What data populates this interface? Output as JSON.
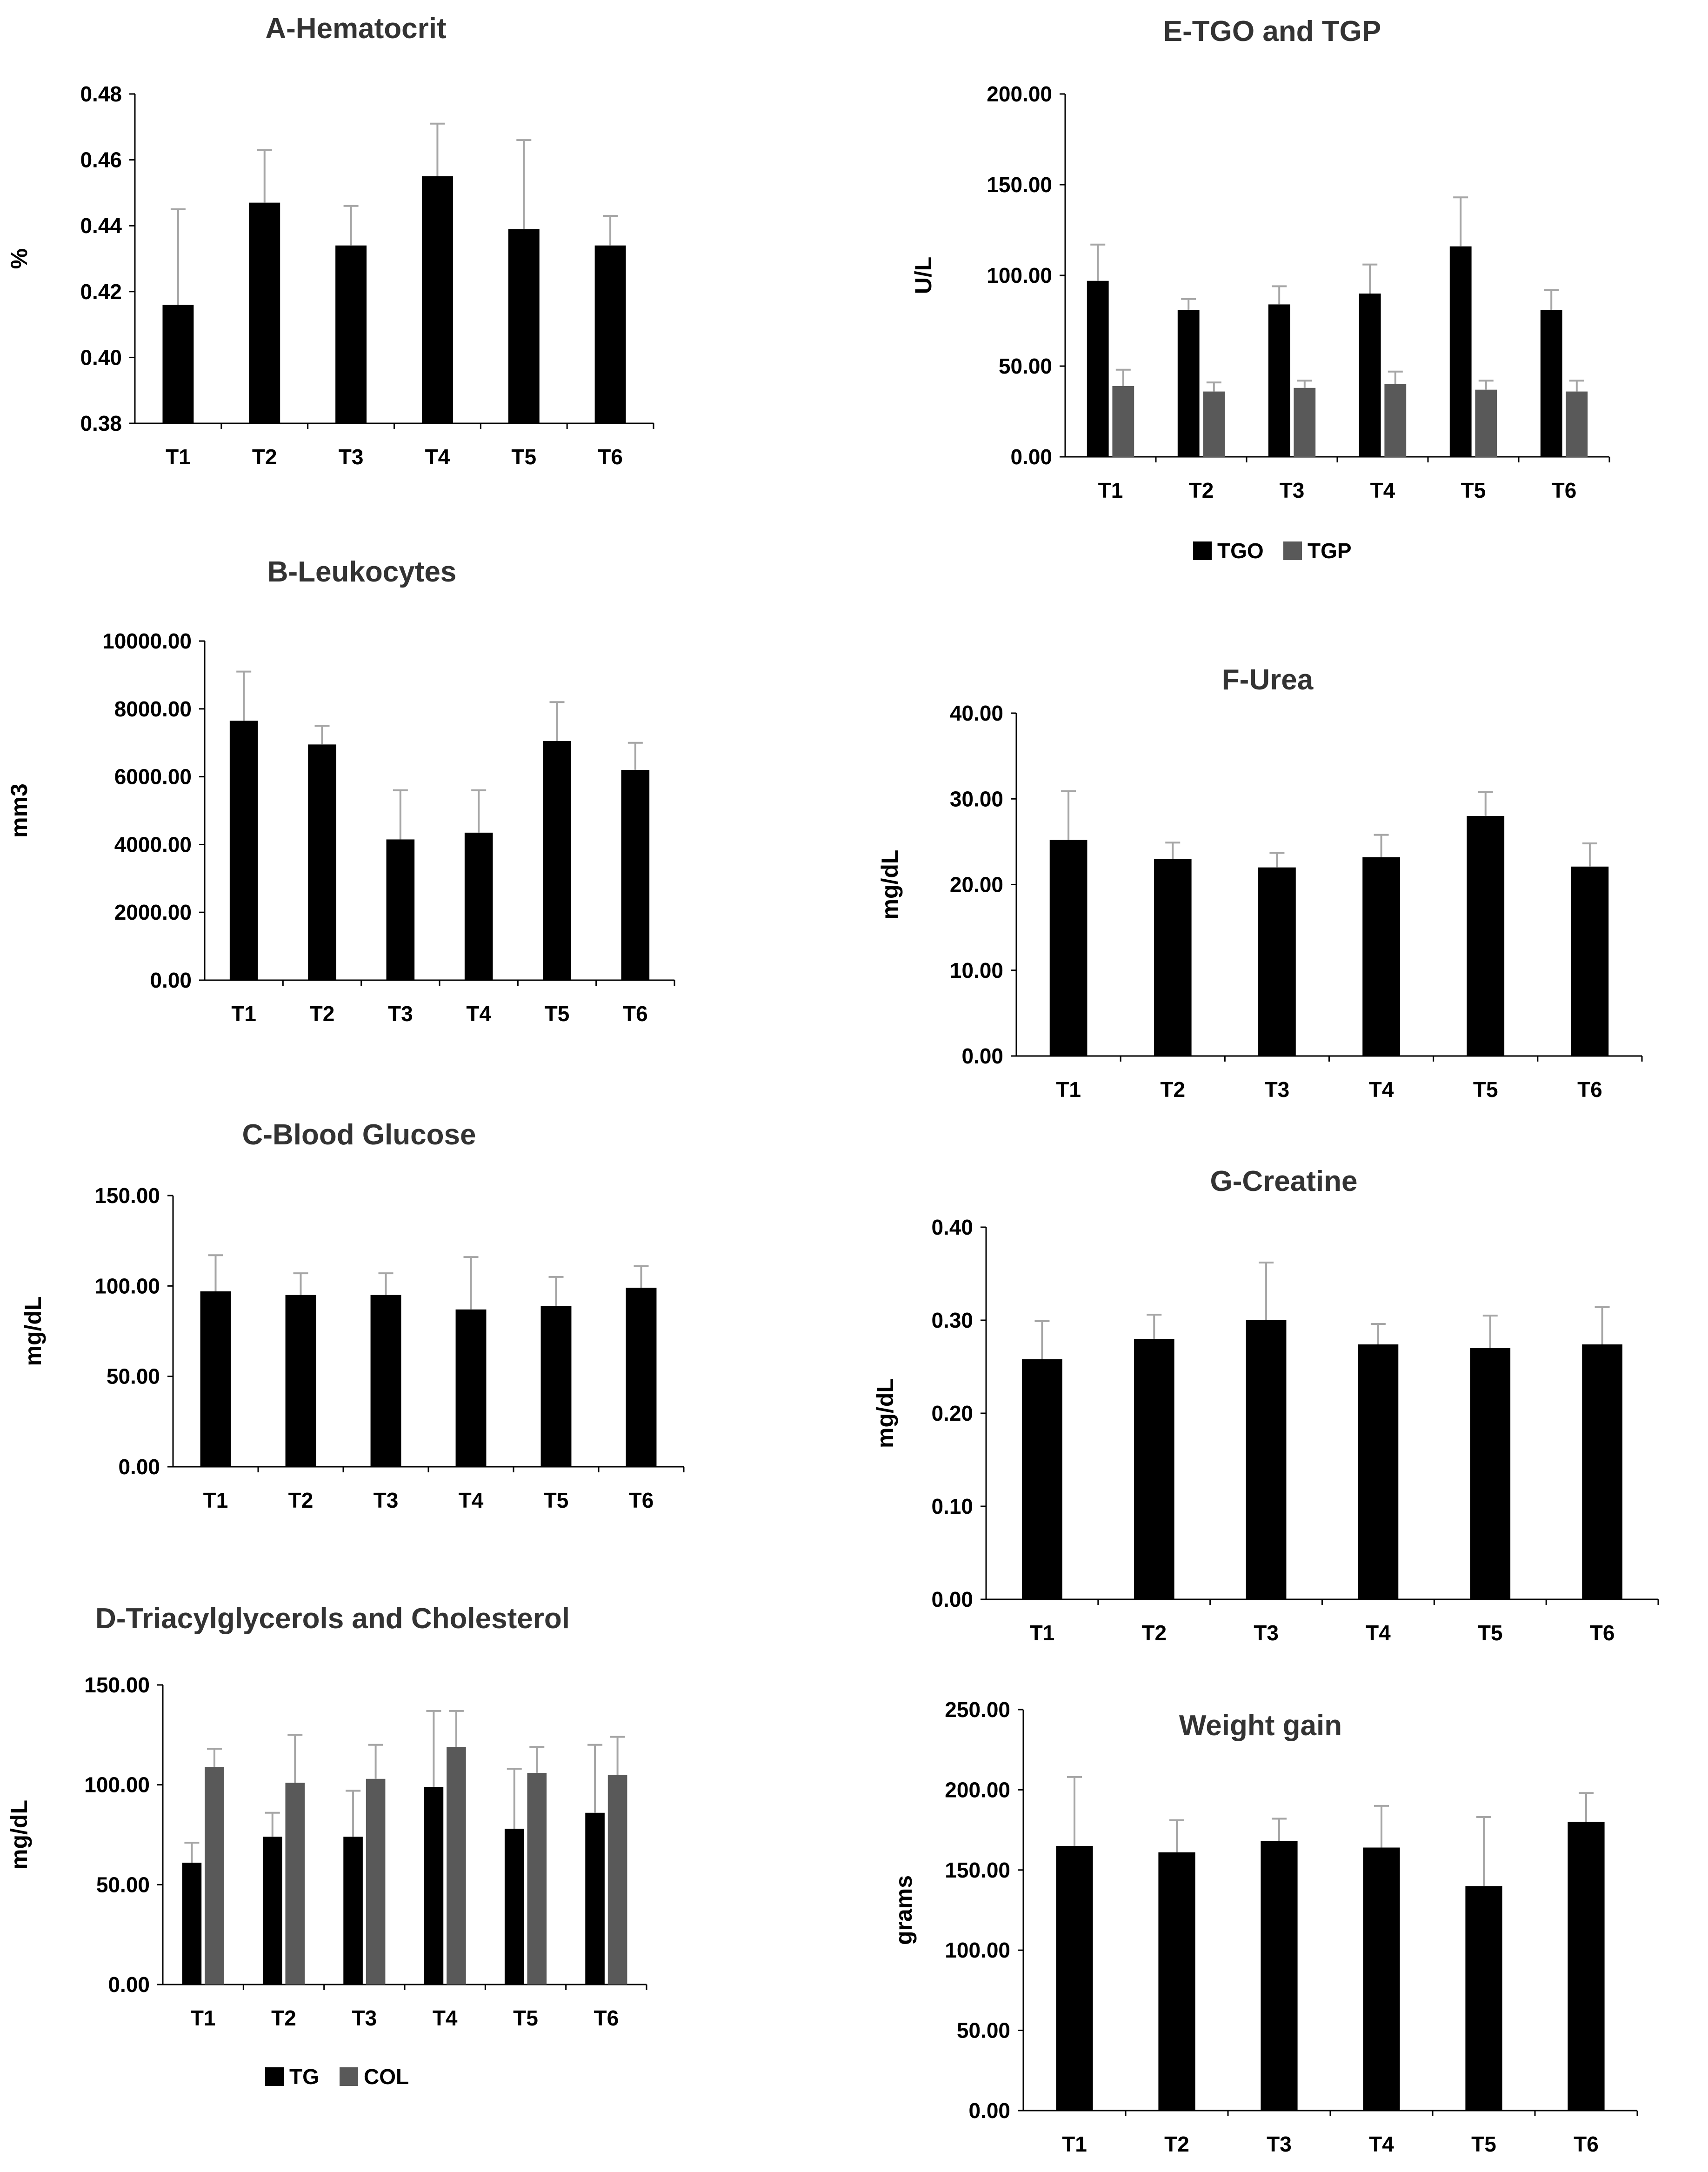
{
  "colors": {
    "primary_bar": "#000000",
    "secondary_bar": "#595959",
    "error_bar": "#a6a6a6",
    "text": "#000000",
    "title": "#333333"
  },
  "chart_data": [
    {
      "id": "A",
      "type": "bar",
      "title": "A-Hematocrit",
      "ylabel": "%",
      "categories": [
        "T1",
        "T2",
        "T3",
        "T4",
        "T5",
        "T6"
      ],
      "ylim": [
        0.38,
        0.48
      ],
      "ytick_step": 0.02,
      "ytick_decimals": 2,
      "series": [
        {
          "name": "Hematocrit",
          "color_key": "primary_bar",
          "values": [
            0.416,
            0.447,
            0.434,
            0.455,
            0.439,
            0.434
          ],
          "errors": [
            0.029,
            0.016,
            0.012,
            0.016,
            0.027,
            0.009
          ]
        }
      ],
      "legend": null
    },
    {
      "id": "B",
      "type": "bar",
      "title": "B-Leukocytes",
      "ylabel": "mm3",
      "categories": [
        "T1",
        "T2",
        "T3",
        "T4",
        "T5",
        "T6"
      ],
      "ylim": [
        0,
        10000
      ],
      "ytick_step": 2000,
      "ytick_decimals": 2,
      "series": [
        {
          "name": "Leukocytes",
          "color_key": "primary_bar",
          "values": [
            7650,
            6950,
            4150,
            4350,
            7050,
            6200
          ],
          "errors": [
            1450,
            550,
            1450,
            1250,
            1150,
            800
          ]
        }
      ],
      "legend": null
    },
    {
      "id": "C",
      "type": "bar",
      "title": "C-Blood Glucose",
      "ylabel": "mg/dL",
      "categories": [
        "T1",
        "T2",
        "T3",
        "T4",
        "T5",
        "T6"
      ],
      "ylim": [
        0,
        150
      ],
      "ytick_step": 50,
      "ytick_decimals": 2,
      "series": [
        {
          "name": "Glucose",
          "color_key": "primary_bar",
          "values": [
            97,
            95,
            95,
            87,
            89,
            99
          ],
          "errors": [
            20,
            12,
            12,
            29,
            16,
            12
          ]
        }
      ],
      "legend": null
    },
    {
      "id": "D",
      "type": "bar",
      "title": "D-Triacylglycerols and Cholesterol",
      "ylabel": "mg/dL",
      "categories": [
        "T1",
        "T2",
        "T3",
        "T4",
        "T5",
        "T6"
      ],
      "ylim": [
        0,
        150
      ],
      "ytick_step": 50,
      "ytick_decimals": 2,
      "series": [
        {
          "name": "TG",
          "color_key": "primary_bar",
          "values": [
            61,
            74,
            74,
            99,
            78,
            86
          ],
          "errors": [
            10,
            12,
            23,
            38,
            30,
            34
          ]
        },
        {
          "name": "COL",
          "color_key": "secondary_bar",
          "values": [
            109,
            101,
            103,
            119,
            106,
            105
          ],
          "errors": [
            9,
            24,
            17,
            18,
            13,
            19
          ]
        }
      ],
      "legend": "bottom"
    },
    {
      "id": "E",
      "type": "bar",
      "title": "E-TGO and TGP",
      "ylabel": "U/L",
      "categories": [
        "T1",
        "T2",
        "T3",
        "T4",
        "T5",
        "T6"
      ],
      "ylim": [
        0,
        200
      ],
      "ytick_step": 50,
      "ytick_decimals": 2,
      "series": [
        {
          "name": "TGO",
          "color_key": "primary_bar",
          "values": [
            97,
            81,
            84,
            90,
            116,
            81
          ],
          "errors": [
            20,
            6,
            10,
            16,
            27,
            11
          ]
        },
        {
          "name": "TGP",
          "color_key": "secondary_bar",
          "values": [
            39,
            36,
            38,
            40,
            37,
            36
          ],
          "errors": [
            9,
            5,
            4,
            7,
            5,
            6
          ]
        }
      ],
      "legend": "bottom"
    },
    {
      "id": "F",
      "type": "bar",
      "title": "F-Urea",
      "ylabel": "mg/dL",
      "categories": [
        "T1",
        "T2",
        "T3",
        "T4",
        "T5",
        "T6"
      ],
      "ylim": [
        0,
        40
      ],
      "ytick_step": 10,
      "ytick_decimals": 2,
      "series": [
        {
          "name": "Urea",
          "color_key": "primary_bar",
          "values": [
            25.2,
            23,
            22,
            23.2,
            28,
            22.1
          ],
          "errors": [
            5.7,
            1.9,
            1.7,
            2.6,
            2.8,
            2.7
          ]
        }
      ],
      "legend": null
    },
    {
      "id": "G",
      "type": "bar",
      "title": "G-Creatine",
      "ylabel": "mg/dL",
      "categories": [
        "T1",
        "T2",
        "T3",
        "T4",
        "T5",
        "T6"
      ],
      "ylim": [
        0,
        0.4
      ],
      "ytick_step": 0.1,
      "ytick_decimals": 2,
      "series": [
        {
          "name": "Creatine",
          "color_key": "primary_bar",
          "values": [
            0.258,
            0.28,
            0.3,
            0.274,
            0.27,
            0.274
          ],
          "errors": [
            0.041,
            0.026,
            0.062,
            0.022,
            0.035,
            0.04
          ]
        }
      ],
      "legend": null
    },
    {
      "id": "H",
      "type": "bar",
      "title": "Weight gain",
      "ylabel": "grams",
      "categories": [
        "T1",
        "T2",
        "T3",
        "T4",
        "T5",
        "T6"
      ],
      "ylim": [
        0,
        250
      ],
      "ytick_step": 50,
      "ytick_decimals": 2,
      "series": [
        {
          "name": "Weight gain",
          "color_key": "primary_bar",
          "values": [
            165,
            161,
            168,
            164,
            140,
            180
          ],
          "errors": [
            43,
            20,
            14,
            26,
            43,
            18
          ]
        }
      ],
      "legend": null
    }
  ]
}
